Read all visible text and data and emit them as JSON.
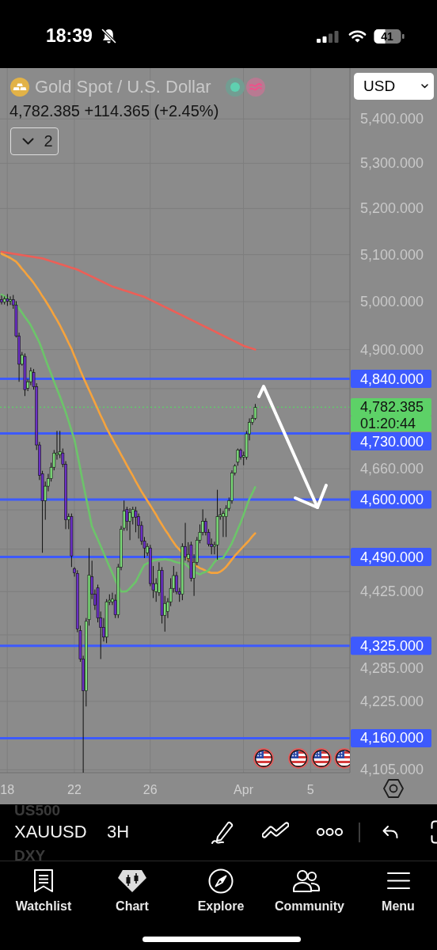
{
  "chart_data": {
    "type": "candlestick",
    "title": "Gold Spot / U.S. Dollar",
    "subtitle": "4,782.385 +114.365 (+2.45%)",
    "categories": [
      null,
      null,
      "18",
      null,
      null,
      null,
      null,
      null,
      null,
      null,
      null,
      null,
      null,
      null,
      null,
      null,
      null,
      null,
      null,
      null,
      null,
      null,
      null,
      null,
      null,
      "22",
      null,
      null,
      null,
      null,
      null,
      null,
      null,
      null,
      null,
      null,
      null,
      null,
      null,
      null,
      null,
      null,
      null,
      null,
      null,
      null,
      null,
      null,
      null,
      null,
      null,
      "26",
      null,
      null,
      null,
      null,
      null,
      null,
      null,
      null,
      null,
      null,
      null,
      null,
      null,
      null,
      null,
      null,
      null,
      null,
      null,
      null,
      null,
      null,
      null,
      null,
      null,
      null,
      null,
      null,
      null,
      null,
      null,
      "Apr",
      null,
      null,
      null,
      null,
      null,
      null,
      null,
      null,
      null,
      null,
      null,
      null,
      null,
      null,
      null,
      null,
      null,
      null,
      null,
      null,
      null,
      null,
      "5",
      null,
      null,
      null,
      null,
      null,
      null,
      null,
      null,
      null,
      null,
      null,
      null,
      null
    ],
    "ohlc": [
      [
        5004,
        5013,
        4994,
        4999
      ],
      [
        4999,
        5011,
        4994,
        5006
      ],
      [
        5006,
        5016,
        4991,
        5001
      ],
      [
        5001,
        5011,
        4993,
        5004
      ],
      [
        5004,
        5014,
        4985,
        4993
      ],
      [
        4993,
        5001,
        4925,
        4928
      ],
      [
        4928,
        4935,
        4834,
        4870
      ],
      [
        4870,
        4895,
        4867,
        4889
      ],
      [
        4886,
        4892,
        4805,
        4818
      ],
      [
        4821,
        4840,
        4815,
        4834
      ],
      [
        4834,
        4863,
        4827,
        4856
      ],
      [
        4853,
        4860,
        4818,
        4824
      ],
      [
        4824,
        4831,
        4697,
        4707
      ],
      [
        4707,
        4713,
        4638,
        4647
      ],
      [
        4650,
        4656,
        4498,
        4598
      ],
      [
        4598,
        4635,
        4561,
        4626
      ],
      [
        4626,
        4650,
        4616,
        4641
      ],
      [
        4641,
        4672,
        4635,
        4663
      ],
      [
        4663,
        4697,
        4657,
        4691
      ],
      [
        4688,
        4735,
        4678,
        4691
      ],
      [
        4688,
        4735,
        4681,
        4694
      ],
      [
        4691,
        4700,
        4663,
        4669
      ],
      [
        4669,
        4675,
        4543,
        4561
      ],
      [
        4561,
        4573,
        4543,
        4567
      ],
      [
        4567,
        4573,
        4471,
        4492
      ],
      [
        4468,
        4471,
        4453,
        4460
      ],
      [
        4459,
        4465,
        4350,
        4356
      ],
      [
        4353,
        4362,
        4296,
        4301
      ],
      [
        4301,
        4307,
        4100,
        4244
      ],
      [
        4244,
        4376,
        4216,
        4370
      ],
      [
        4373,
        4507,
        4362,
        4456
      ],
      [
        4453,
        4483,
        4411,
        4420
      ],
      [
        4420,
        4429,
        4391,
        4400
      ],
      [
        4432,
        4438,
        4368,
        4376
      ],
      [
        4376,
        4388,
        4301,
        4359
      ],
      [
        4359,
        4376,
        4333,
        4341
      ],
      [
        4341,
        4411,
        4330,
        4406
      ],
      [
        4406,
        4420,
        4400,
        4409
      ],
      [
        4406,
        4423,
        4400,
        4411
      ],
      [
        4409,
        4420,
        4376,
        4382
      ],
      [
        4382,
        4477,
        4376,
        4471
      ],
      [
        4471,
        4549,
        4465,
        4543
      ],
      [
        4545,
        4598,
        4540,
        4578
      ],
      [
        4581,
        4586,
        4540,
        4558
      ],
      [
        4558,
        4583,
        4522,
        4575
      ],
      [
        4566,
        4586,
        4552,
        4581
      ],
      [
        4578,
        4586,
        4537,
        4566
      ],
      [
        4567,
        4573,
        4525,
        4550
      ],
      [
        4550,
        4558,
        4513,
        4520
      ],
      [
        4520,
        4528,
        4488,
        4507
      ],
      [
        4498,
        4516,
        4492,
        4510
      ],
      [
        4507,
        4513,
        4435,
        4440
      ],
      [
        4440,
        4473,
        4413,
        4428
      ],
      [
        4425,
        4450,
        4406,
        4440
      ],
      [
        4423,
        4480,
        4417,
        4465
      ],
      [
        4465,
        4471,
        4366,
        4381
      ],
      [
        4381,
        4417,
        4351,
        4403
      ],
      [
        4388,
        4413,
        4376,
        4406
      ],
      [
        4406,
        4450,
        4398,
        4431
      ],
      [
        4431,
        4473,
        4423,
        4455
      ],
      [
        4455,
        4462,
        4420,
        4425
      ],
      [
        4425,
        4432,
        4406,
        4420
      ],
      [
        4420,
        4516,
        4409,
        4510
      ],
      [
        4510,
        4555,
        4483,
        4490
      ],
      [
        4487,
        4518,
        4480,
        4495
      ],
      [
        4513,
        4519,
        4444,
        4450
      ],
      [
        4450,
        4495,
        4417,
        4480
      ],
      [
        4480,
        4528,
        4474,
        4522
      ],
      [
        4522,
        4552,
        4516,
        4537
      ],
      [
        4537,
        4581,
        4531,
        4558
      ],
      [
        4558,
        4564,
        4531,
        4537
      ],
      [
        4537,
        4543,
        4510,
        4514
      ],
      [
        4514,
        4525,
        4495,
        4510
      ],
      [
        4510,
        4519,
        4495,
        4513
      ],
      [
        4513,
        4619,
        4485,
        4567
      ],
      [
        4567,
        4583,
        4561,
        4570
      ],
      [
        4567,
        4578,
        4528,
        4573
      ],
      [
        4567,
        4589,
        4528,
        4583
      ],
      [
        4583,
        4604,
        4578,
        4598
      ],
      [
        4598,
        4657,
        4592,
        4652
      ],
      [
        4652,
        4669,
        4647,
        4666
      ],
      [
        4673,
        4700,
        4666,
        4697
      ],
      [
        4697,
        4700,
        4678,
        4683
      ],
      [
        4683,
        4694,
        4667,
        4686
      ],
      [
        4683,
        4735,
        4678,
        4729
      ],
      [
        4729,
        4760,
        4716,
        4752
      ],
      [
        4752,
        4767,
        4747,
        4760
      ],
      [
        4760,
        4789,
        4757,
        4782
      ],
      null,
      null,
      null,
      null,
      null,
      null,
      null,
      null,
      null,
      null,
      null,
      null,
      null,
      null,
      null,
      null,
      null,
      null,
      null,
      null,
      null,
      null,
      null,
      null,
      null,
      null,
      null,
      null,
      null,
      null,
      null,
      null
    ],
    "colors": [
      "#6a2fc4",
      "#7ddc7a",
      "#6a2fc4",
      "#7ddc7a",
      "#6a2fc4",
      "#6a2fc4",
      "#6a2fc4",
      "#7ddc7a",
      "#6a2fc4",
      "#7ddc7a",
      "#7ddc7a",
      "#6a2fc4",
      "#6a2fc4",
      "#6a2fc4",
      "#6a2fc4",
      "#7ddc7a",
      "#7ddc7a",
      "#7ddc7a",
      "#7ddc7a",
      "#7ddc7a",
      "#7ddc7a",
      "#6a2fc4",
      "#6a2fc4",
      "#7ddc7a",
      "#6a2fc4",
      "#6a2fc4",
      "#6a2fc4",
      "#6a2fc4",
      "#6a2fc4",
      "#7ddc7a",
      "#7ddc7a",
      "#6a2fc4",
      "#6a2fc4",
      "#6a2fc4",
      "#6a2fc4",
      "#6a2fc4",
      "#7ddc7a",
      "#7ddc7a",
      "#7ddc7a",
      "#6a2fc4",
      "#7ddc7a",
      "#7ddc7a",
      "#7ddc7a",
      "#6a2fc4",
      "#7ddc7a",
      "#7ddc7a",
      "#6a2fc4",
      "#6a2fc4",
      "#6a2fc4",
      "#6a2fc4",
      "#7ddc7a",
      "#6a2fc4",
      "#6a2fc4",
      "#7ddc7a",
      "#7ddc7a",
      "#6a2fc4",
      "#7ddc7a",
      "#7ddc7a",
      "#7ddc7a",
      "#7ddc7a",
      "#6a2fc4",
      "#6a2fc4",
      "#7ddc7a",
      "#6a2fc4",
      "#7ddc7a",
      "#6a2fc4",
      "#7ddc7a",
      "#7ddc7a",
      "#7ddc7a",
      "#7ddc7a",
      "#6a2fc4",
      "#6a2fc4",
      "#6a2fc4",
      "#7ddc7a",
      "#7ddc7a",
      "#7ddc7a",
      "#7ddc7a",
      "#7ddc7a",
      "#7ddc7a",
      "#7ddc7a",
      "#7ddc7a",
      "#7ddc7a",
      "#6a2fc4",
      "#7ddc7a",
      "#7ddc7a",
      "#7ddc7a",
      "#7ddc7a",
      "#7ddc7a",
      null,
      null,
      null,
      null,
      null,
      null,
      null,
      null,
      null,
      null,
      null,
      null,
      null,
      null,
      null,
      null,
      null,
      null,
      null,
      null,
      null,
      null,
      null,
      null,
      null,
      null,
      null,
      null,
      null,
      null,
      null,
      null
    ],
    "series": [
      {
        "type": "line",
        "color": "#ec5f57",
        "values": [
          5106,
          5105,
          5104,
          5103,
          5102,
          5101,
          5100,
          5099,
          5098,
          5097,
          5096,
          5095,
          5094,
          5093,
          5092,
          5090,
          5088,
          5086,
          5084,
          5082,
          5080,
          5078,
          5076,
          5074,
          5072,
          5070,
          5068,
          5065,
          5062,
          5059,
          5056,
          5053,
          5050,
          5047,
          5044,
          5041,
          5038,
          5035,
          5032,
          5030,
          5028,
          5026,
          5024,
          5022,
          5020,
          5018,
          5016,
          5014,
          5012,
          5010,
          5007,
          5004,
          5001,
          4998,
          4995,
          4992,
          4989,
          4986,
          4983,
          4980,
          4977,
          4974,
          4971,
          4968,
          4965,
          4962,
          4959,
          4956,
          4953,
          4950,
          4947,
          4944,
          4941,
          4938,
          4935,
          4932,
          4929,
          4926,
          4923,
          4920,
          4917,
          4914,
          4911,
          4908,
          4906,
          4904,
          4902,
          4900,
          null,
          null,
          null,
          null,
          null,
          null,
          null,
          null,
          null,
          null,
          null,
          null,
          null,
          null,
          null,
          null,
          null,
          null,
          null,
          null,
          null,
          null,
          null,
          null,
          null,
          null,
          null,
          null,
          null,
          null,
          null,
          null
        ]
      },
      {
        "type": "line",
        "color": "#f5a33d",
        "values": [
          5102,
          5099,
          5096,
          5093,
          5089,
          5085,
          5078,
          5070,
          5063,
          5055,
          5048,
          5040,
          5031,
          5022,
          5012,
          5003,
          4993,
          4983,
          4972,
          4962,
          4951,
          4939,
          4927,
          4914,
          4902,
          4887,
          4873,
          4858,
          4844,
          4831,
          4818,
          4805,
          4792,
          4779,
          4766,
          4754,
          4741,
          4730,
          4720,
          4709,
          4699,
          4688,
          4678,
          4667,
          4657,
          4647,
          4636,
          4626,
          4616,
          4607,
          4598,
          4589,
          4580,
          4571,
          4561,
          4552,
          4543,
          4535,
          4526,
          4518,
          4510,
          4504,
          4498,
          4492,
          4486,
          4482,
          4477,
          4473,
          4469,
          4467,
          4464,
          4462,
          4460,
          4460,
          4460,
          4462,
          4466,
          4471,
          4478,
          4485,
          4492,
          4498,
          4504,
          4510,
          4516,
          4522,
          4529,
          4535,
          null,
          null,
          null,
          null,
          null,
          null,
          null,
          null,
          null,
          null,
          null,
          null,
          null,
          null,
          null,
          null,
          null,
          null,
          null,
          null,
          null,
          null,
          null,
          null,
          null,
          null,
          null,
          null,
          null,
          null,
          null,
          null
        ]
      },
      {
        "type": "line",
        "color": "#6cc46a",
        "values": [
          5015,
          5011,
          5007,
          5003,
          4998,
          4994,
          4986,
          4977,
          4968,
          4960,
          4951,
          4939,
          4927,
          4915,
          4899,
          4882,
          4866,
          4851,
          4835,
          4820,
          4805,
          4789,
          4773,
          4755,
          4736,
          4718,
          4690,
          4661,
          4632,
          4604,
          4577,
          4549,
          4536,
          4524,
          4511,
          4498,
          4485,
          4472,
          4460,
          4447,
          4436,
          4425,
          4425,
          4426,
          4431,
          4437,
          4443,
          4454,
          4465,
          4475,
          4478,
          4480,
          4483,
          4484,
          4485,
          4485,
          4486,
          4485,
          4484,
          4482,
          4480,
          4479,
          4478,
          4477,
          4472,
          4467,
          4462,
          4460,
          4457,
          4460,
          4462,
          4465,
          4472,
          4480,
          4486,
          4487,
          4488,
          4497,
          4506,
          4516,
          4529,
          4542,
          4555,
          4570,
          4586,
          4601,
          4612,
          4624,
          null,
          null,
          null,
          null,
          null,
          null,
          null,
          null,
          null,
          null,
          null,
          null,
          null,
          null,
          null,
          null,
          null,
          null,
          null,
          null,
          null,
          null,
          null,
          null,
          null,
          null,
          null,
          null,
          null,
          null,
          null,
          null
        ]
      }
    ],
    "ylim": [
      4100,
      5517
    ],
    "log": "y",
    "grid": true,
    "marker": "none",
    "yticks": [
      {
        "value": 5400,
        "label": "5,400.000"
      },
      {
        "value": 5300,
        "label": "5,300.000"
      },
      {
        "value": 5200,
        "label": "5,200.000"
      },
      {
        "value": 5100,
        "label": "5,100.000"
      },
      {
        "value": 5000,
        "label": "5,000.000"
      },
      {
        "value": 4900,
        "label": "4,900.000"
      },
      {
        "value": 4820,
        "label": null
      },
      {
        "value": 4660,
        "label": "4,660.000"
      },
      {
        "value": 4580,
        "label": null
      },
      {
        "value": 4505,
        "label": null
      },
      {
        "value": 4425,
        "label": "4,425.000"
      },
      {
        "value": 4345,
        "label": null
      },
      {
        "value": 4285,
        "label": "4,285.000"
      },
      {
        "value": 4225,
        "label": "4,225.000"
      },
      {
        "value": 4105,
        "label": "4,105.000"
      }
    ],
    "ref_lines": [
      {
        "axis": "y",
        "value": 4840,
        "label": "4,840.000",
        "color": "#3d5afe",
        "line_style": "solid"
      },
      {
        "axis": "y",
        "value": 4730,
        "label": "4,730.000",
        "color": "#3d5afe",
        "line_style": "solid"
      },
      {
        "axis": "y",
        "value": 4600,
        "label": "4,600.000",
        "color": "#3d5afe",
        "line_style": "solid"
      },
      {
        "axis": "y",
        "value": 4490,
        "label": "4,490.000",
        "color": "#3d5afe",
        "line_style": "solid"
      },
      {
        "axis": "y",
        "value": 4325,
        "label": "4,325.000",
        "color": "#3d5afe",
        "line_style": "solid"
      },
      {
        "axis": "y",
        "value": 4160,
        "label": "4,160.000",
        "color": "#3d5afe",
        "line_style": "solid"
      },
      {
        "axis": "y",
        "value": 4782.385,
        "label": "4,782.385",
        "color": "#5dd167",
        "line_style": "dotted"
      }
    ],
    "annotations": [
      "18:39",
      "41",
      "2",
      "USD",
      "US500",
      "XAUUSD",
      "3H",
      "DXY",
      "Watchlist",
      "Chart",
      "Explore",
      "Community",
      "Menu",
      "01:20:44"
    ]
  }
}
